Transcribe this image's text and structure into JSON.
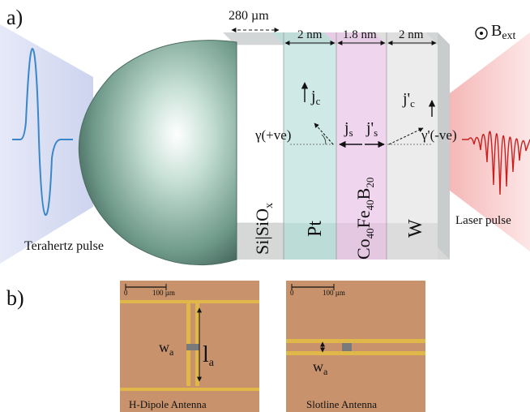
{
  "panel_a": {
    "label": "a)",
    "thickness_si": "280 µm",
    "thickness_pt": "2 nm",
    "thickness_cofeb": "1.8 nm",
    "thickness_w": "2 nm",
    "bext_main": "B",
    "bext_sub": "ext",
    "jc_main": "j",
    "jc_sub": "c",
    "jpc_main": "j'",
    "jpc_sub": "c",
    "js_main": "j",
    "js_sub": "s",
    "jps_main": "j'",
    "jps_sub": "s",
    "gamma": "γ(+ve)",
    "gamma_prime": "γ'(-ve)",
    "layer_si": "Si|SiO",
    "layer_si_sub": "x",
    "layer_pt": "Pt",
    "layer_co": "Co",
    "layer_co_sub": "40",
    "layer_fe": "Fe",
    "layer_fe_sub": "40",
    "layer_b": "B",
    "layer_b_sub": "20",
    "layer_w": "W",
    "terahertz_caption": "Terahertz pulse",
    "laser_caption": "Laser pulse",
    "colors": {
      "sio_face": "#ffffff",
      "pt_face": "#cfe9e6",
      "cofeb_face": "#efd6ee",
      "w_face": "#ececec",
      "slab_top": "#d3d6d6",
      "thz_wave": "#3a86c8",
      "laser_wave": "#c81e1e",
      "thz_beam": "#dde2f4",
      "laser_beam": "#f7c9c9"
    }
  },
  "panel_b": {
    "label": "b)",
    "left_photo": {
      "scale_label": "100 µm",
      "scale_zero": "0",
      "wa_main": "w",
      "wa_sub": "a",
      "la_main": "l",
      "la_sub": "a",
      "caption": "H-Dipole Antenna"
    },
    "right_photo": {
      "scale_label": "100 µm",
      "scale_zero": "0",
      "wa_main": "w",
      "wa_sub": "a",
      "caption": "Slotline Antenna"
    },
    "colors": {
      "substrate": "#c8936c",
      "gold": "#e0b84a"
    }
  }
}
